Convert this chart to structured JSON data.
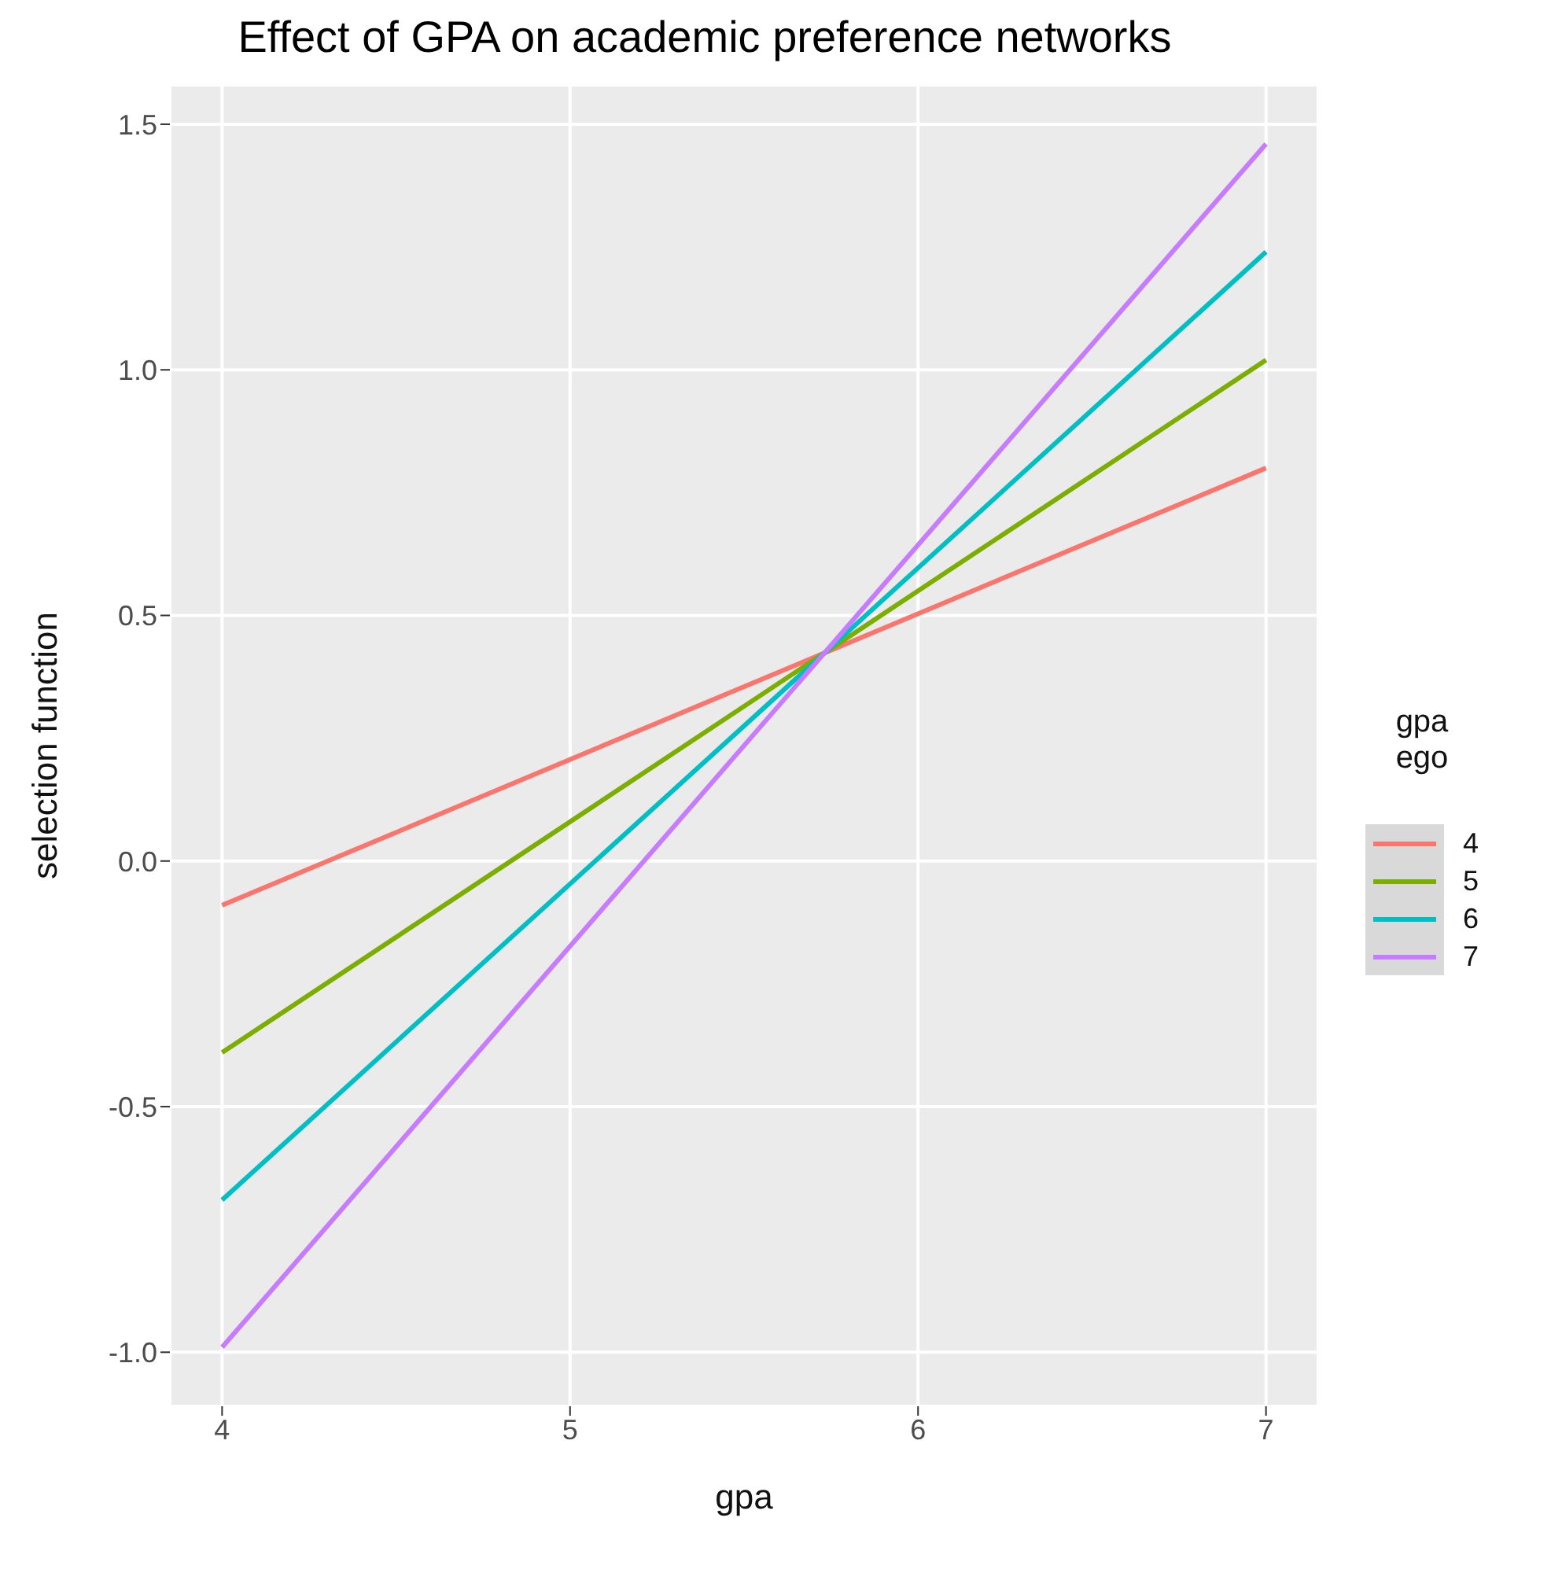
{
  "chart_data": {
    "type": "line",
    "title": "Effect of GPA on academic preference networks",
    "xlabel": "gpa",
    "ylabel": "selection function",
    "legend_title": "gpa\nego",
    "legend": "right",
    "grid": true,
    "marker": "none",
    "line_style": "solid",
    "x": [
      4,
      7
    ],
    "series": [
      {
        "name": "4",
        "color": "#f8766d",
        "values": [
          -0.09,
          0.8
        ]
      },
      {
        "name": "5",
        "color": "#7cae00",
        "values": [
          -0.39,
          1.02
        ]
      },
      {
        "name": "6",
        "color": "#00bfc4",
        "values": [
          -0.69,
          1.24
        ]
      },
      {
        "name": "7",
        "color": "#c77cff",
        "values": [
          -0.99,
          1.46
        ]
      }
    ],
    "xlim": [
      3.85,
      7.15
    ],
    "xticks": [
      4,
      5,
      6,
      7
    ],
    "ylim": [
      -1.11,
      1.58
    ],
    "yticks": [
      {
        "value": -1,
        "label": "-1.0"
      },
      -0.5,
      {
        "value": 0,
        "label": "0.0"
      },
      0.5,
      {
        "value": 1,
        "label": "1.0"
      },
      1.5
    ]
  }
}
